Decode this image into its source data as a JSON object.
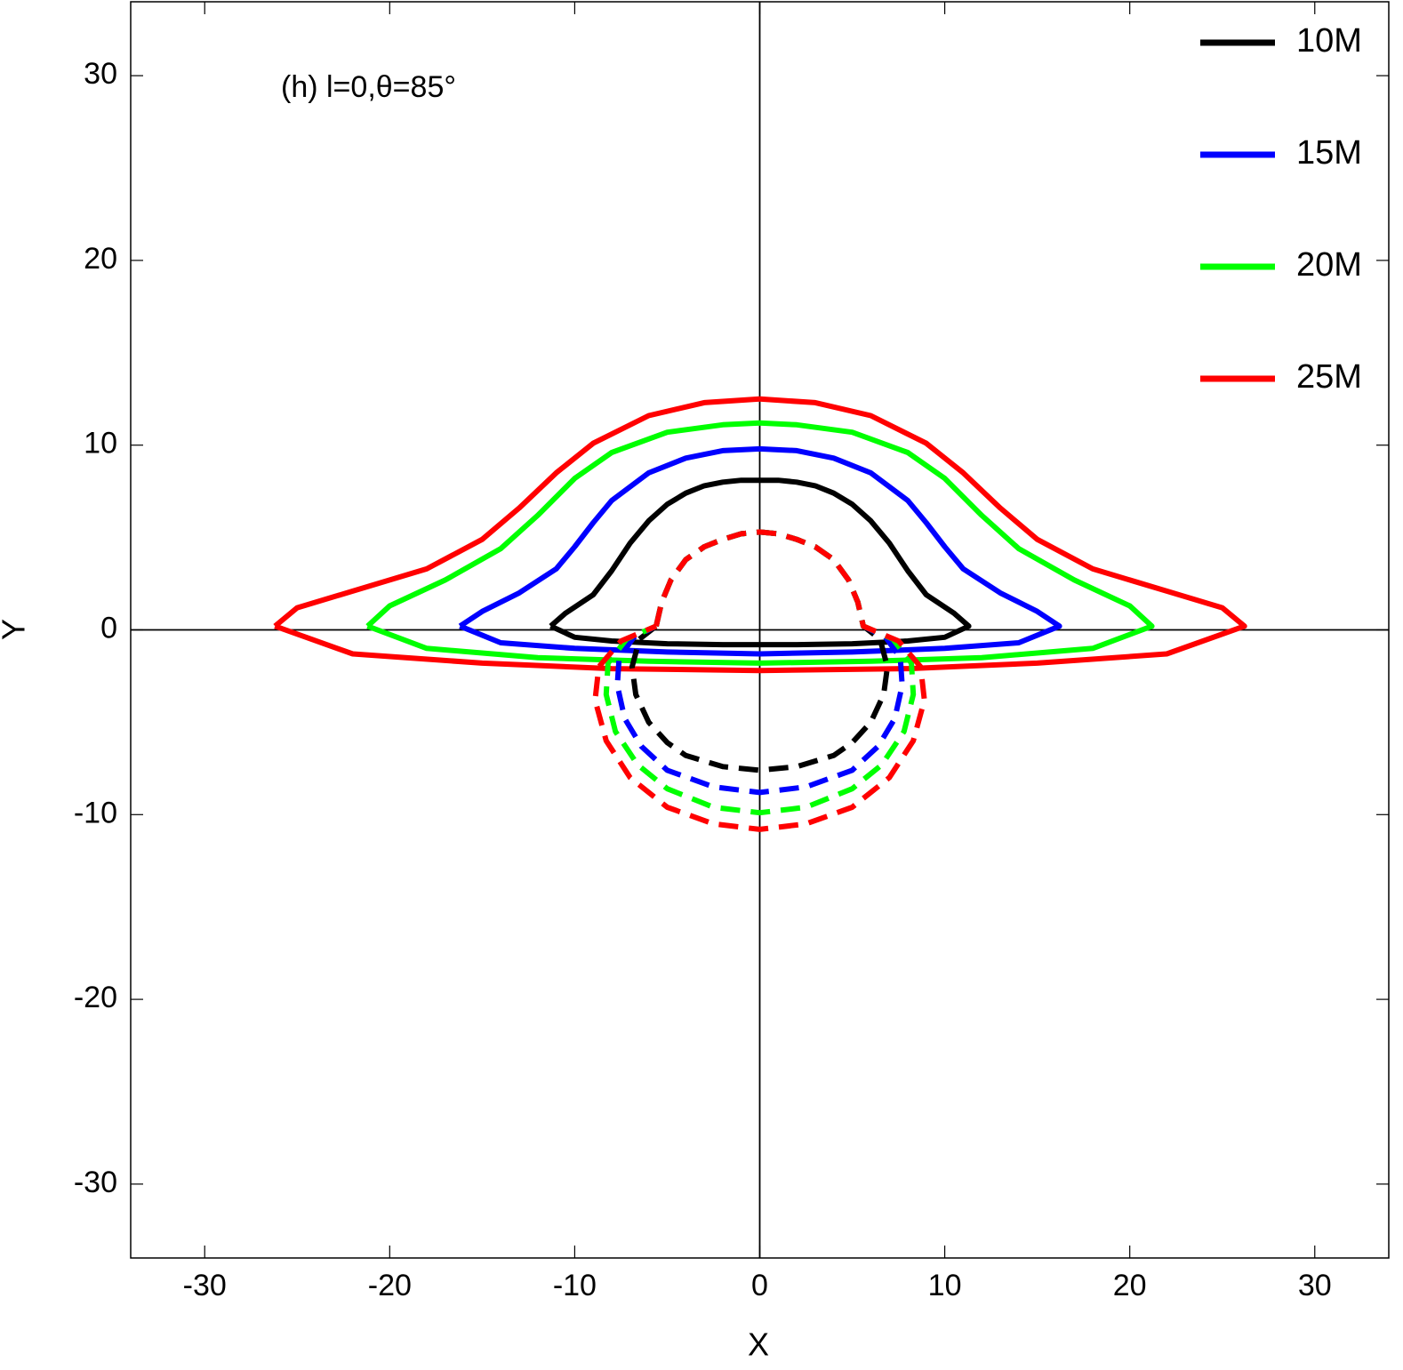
{
  "chart_data": {
    "type": "line",
    "annotation": "(h) l=0,θ=85°",
    "x_label": "X",
    "y_label": "Y",
    "xlim": [
      -34,
      34
    ],
    "ylim": [
      -34,
      34
    ],
    "xticks": [
      -30,
      -20,
      -10,
      0,
      10,
      20,
      30
    ],
    "yticks": [
      -30,
      -20,
      -10,
      0,
      10,
      20,
      30
    ],
    "legend": "top-right",
    "series": [
      {
        "name": "10M",
        "color": "#000000",
        "x": [
          -11.3,
          -10.5,
          -9,
          -8,
          -7,
          -6,
          -5,
          -4,
          -3,
          -2,
          -1,
          0,
          1,
          2,
          3,
          4,
          5,
          6,
          7,
          8,
          9,
          10.5,
          11.3,
          10,
          8,
          5,
          2,
          0,
          -2,
          -5,
          -8,
          -10,
          -11.3
        ],
        "y": [
          0.2,
          0.9,
          1.9,
          3.2,
          4.7,
          5.9,
          6.8,
          7.4,
          7.8,
          8.0,
          8.1,
          8.1,
          8.1,
          8.0,
          7.8,
          7.4,
          6.8,
          5.9,
          4.7,
          3.2,
          1.9,
          0.9,
          0.2,
          -0.4,
          -0.6,
          -0.75,
          -0.8,
          -0.8,
          -0.8,
          -0.75,
          -0.6,
          -0.4,
          0.2
        ]
      },
      {
        "name": "15M",
        "color": "#0000ff",
        "x": [
          -16.2,
          -15,
          -13,
          -11,
          -10,
          -9,
          -8,
          -6,
          -4,
          -2,
          0,
          2,
          4,
          6,
          8,
          9,
          10,
          11,
          13,
          15,
          16.2,
          14,
          10,
          5,
          0,
          -5,
          -10,
          -14,
          -16.2
        ],
        "y": [
          0.2,
          1.0,
          2.0,
          3.3,
          4.5,
          5.8,
          7.0,
          8.5,
          9.3,
          9.7,
          9.8,
          9.7,
          9.3,
          8.5,
          7.0,
          5.8,
          4.5,
          3.3,
          2.0,
          1.0,
          0.2,
          -0.7,
          -1.0,
          -1.2,
          -1.3,
          -1.2,
          -1.0,
          -0.7,
          0.2
        ]
      },
      {
        "name": "20M",
        "color": "#00ff00",
        "x": [
          -21.2,
          -20,
          -17,
          -14,
          -12,
          -10,
          -8,
          -5,
          -2,
          0,
          2,
          5,
          8,
          10,
          12,
          14,
          17,
          20,
          21.2,
          18,
          12,
          6,
          0,
          -6,
          -12,
          -18,
          -21.2
        ],
        "y": [
          0.2,
          1.3,
          2.7,
          4.4,
          6.2,
          8.2,
          9.6,
          10.7,
          11.1,
          11.2,
          11.1,
          10.7,
          9.6,
          8.2,
          6.2,
          4.4,
          2.7,
          1.3,
          0.2,
          -1.0,
          -1.5,
          -1.7,
          -1.8,
          -1.7,
          -1.5,
          -1.0,
          0.2
        ]
      },
      {
        "name": "25M",
        "color": "#ff0000",
        "x": [
          -26.2,
          -25,
          -22,
          -18,
          -15,
          -13,
          -11,
          -9,
          -6,
          -3,
          0,
          3,
          6,
          9,
          11,
          13,
          15,
          18,
          22,
          25,
          26.2,
          22,
          15,
          8,
          0,
          -8,
          -15,
          -22,
          -26.2
        ],
        "y": [
          0.2,
          1.2,
          2.1,
          3.3,
          4.9,
          6.6,
          8.5,
          10.1,
          11.6,
          12.3,
          12.5,
          12.3,
          11.6,
          10.1,
          8.5,
          6.6,
          4.9,
          3.3,
          2.1,
          1.2,
          0.2,
          -1.3,
          -1.8,
          -2.1,
          -2.2,
          -2.1,
          -1.8,
          -1.3,
          0.2
        ]
      },
      {
        "color": "#000000",
        "dash": true,
        "x": [
          -5.6,
          -5.3,
          -4.8,
          -4,
          -3,
          -2,
          -1,
          0,
          1,
          2,
          3,
          4,
          4.8,
          5.3,
          5.6,
          6.5,
          6.9,
          6.7,
          6,
          5,
          4,
          2,
          0,
          -2,
          -4,
          -5,
          -6,
          -6.7,
          -6.9,
          -6.5,
          -5.6
        ],
        "y": [
          0.2,
          1.5,
          2.7,
          3.8,
          4.5,
          4.9,
          5.2,
          5.3,
          5.2,
          4.9,
          4.5,
          3.8,
          2.7,
          1.5,
          0.2,
          -0.5,
          -2,
          -3.5,
          -5,
          -6.1,
          -6.8,
          -7.4,
          -7.6,
          -7.4,
          -6.8,
          -6.1,
          -5,
          -3.5,
          -2,
          -0.5,
          0.2
        ]
      },
      {
        "color": "#0000ff",
        "dash": true,
        "x": [
          -5.6,
          -5.3,
          -4.8,
          -4,
          -3,
          -2,
          -1,
          0,
          1,
          2,
          3,
          4,
          4.8,
          5.3,
          5.6,
          6.8,
          7.6,
          7.7,
          7.3,
          6.4,
          5,
          2.5,
          0,
          -2.5,
          -5,
          -6.4,
          -7.3,
          -7.7,
          -7.6,
          -6.8,
          -5.6
        ],
        "y": [
          0.2,
          1.5,
          2.7,
          3.8,
          4.5,
          4.9,
          5.2,
          5.3,
          5.2,
          4.9,
          4.5,
          3.8,
          2.7,
          1.5,
          0.2,
          -0.4,
          -1.5,
          -3,
          -4.8,
          -6.3,
          -7.6,
          -8.5,
          -8.8,
          -8.5,
          -7.6,
          -6.3,
          -4.8,
          -3,
          -1.5,
          -0.4,
          0.2
        ]
      },
      {
        "color": "#00ff00",
        "dash": true,
        "x": [
          -5.6,
          -5.3,
          -4.8,
          -4,
          -3,
          -2,
          -1,
          0,
          1,
          2,
          3,
          4,
          4.8,
          5.3,
          5.6,
          7.2,
          8.2,
          8.3,
          7.8,
          6.6,
          5,
          2.5,
          0,
          -2.5,
          -5,
          -6.6,
          -7.8,
          -8.3,
          -8.2,
          -7.2,
          -5.6
        ],
        "y": [
          0.2,
          1.5,
          2.7,
          3.8,
          4.5,
          4.9,
          5.2,
          5.3,
          5.2,
          4.9,
          4.5,
          3.8,
          2.7,
          1.5,
          0.2,
          -0.5,
          -1.8,
          -3.5,
          -5.5,
          -7.3,
          -8.6,
          -9.6,
          -9.9,
          -9.6,
          -8.6,
          -7.3,
          -5.5,
          -3.5,
          -1.8,
          -0.5,
          0.2
        ]
      },
      {
        "color": "#ff0000",
        "dash": true,
        "x": [
          -5.6,
          -5.3,
          -4.8,
          -4,
          -3,
          -2,
          -1,
          0,
          1,
          2,
          3,
          4,
          4.8,
          5.3,
          5.6,
          7.5,
          8.7,
          8.9,
          8.3,
          7,
          5,
          2.5,
          0,
          -2.5,
          -5,
          -7,
          -8.3,
          -8.9,
          -8.7,
          -7.5,
          -5.6
        ],
        "y": [
          0.2,
          1.5,
          2.7,
          3.8,
          4.5,
          4.9,
          5.2,
          5.3,
          5.2,
          4.9,
          4.5,
          3.8,
          2.7,
          1.5,
          0.2,
          -0.6,
          -2,
          -3.8,
          -6,
          -8,
          -9.6,
          -10.5,
          -10.8,
          -10.5,
          -9.6,
          -8,
          -6,
          -3.8,
          -2,
          -0.6,
          0.2
        ]
      }
    ]
  }
}
